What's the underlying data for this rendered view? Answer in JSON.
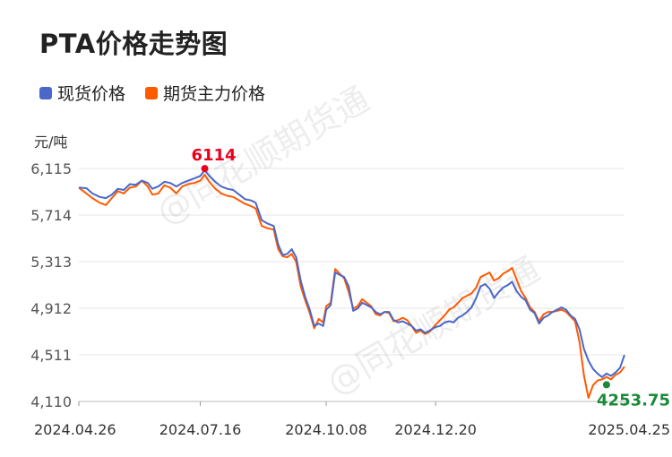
{
  "title": "PTA价格走势图",
  "chart_data": {
    "type": "line",
    "title": "PTA价格走势图",
    "unit": "元/吨",
    "ylim": [
      4110,
      6115
    ],
    "y_ticks": [
      "6,115",
      "5,714",
      "5,313",
      "4,912",
      "4,511",
      "4,110"
    ],
    "y_tick_values": [
      6115,
      5714,
      5313,
      4912,
      4511,
      4110
    ],
    "x_ticks": [
      "2024.04.26",
      "2024.07.16",
      "2024.10.08",
      "2024.12.20",
      "2025.04.25"
    ],
    "x_range": [
      "2024.04.26",
      "2025.04.25"
    ],
    "legend_position": "top-left",
    "grid": true,
    "series": [
      {
        "name": "现货价格",
        "color": "#4a67c9",
        "points": [
          [
            "2024-04-26",
            5950
          ],
          [
            "2024-05-01",
            5945
          ],
          [
            "2024-05-05",
            5900
          ],
          [
            "2024-05-10",
            5870
          ],
          [
            "2024-05-14",
            5860
          ],
          [
            "2024-05-18",
            5890
          ],
          [
            "2024-05-22",
            5940
          ],
          [
            "2024-05-26",
            5930
          ],
          [
            "2024-05-30",
            5980
          ],
          [
            "2024-06-03",
            5975
          ],
          [
            "2024-06-07",
            6010
          ],
          [
            "2024-06-11",
            5990
          ],
          [
            "2024-06-14",
            5940
          ],
          [
            "2024-06-18",
            5960
          ],
          [
            "2024-06-22",
            6000
          ],
          [
            "2024-06-26",
            5990
          ],
          [
            "2024-06-30",
            5960
          ],
          [
            "2024-07-04",
            5990
          ],
          [
            "2024-07-08",
            6010
          ],
          [
            "2024-07-12",
            6030
          ],
          [
            "2024-07-16",
            6050
          ],
          [
            "2024-07-19",
            6100
          ],
          [
            "2024-07-22",
            6050
          ],
          [
            "2024-07-26",
            6000
          ],
          [
            "2024-07-30",
            5960
          ],
          [
            "2024-08-03",
            5940
          ],
          [
            "2024-08-07",
            5930
          ],
          [
            "2024-08-11",
            5890
          ],
          [
            "2024-08-15",
            5850
          ],
          [
            "2024-08-19",
            5840
          ],
          [
            "2024-08-22",
            5820
          ],
          [
            "2024-08-26",
            5670
          ],
          [
            "2024-08-30",
            5640
          ],
          [
            "2024-09-03",
            5620
          ],
          [
            "2024-09-06",
            5460
          ],
          [
            "2024-09-09",
            5370
          ],
          [
            "2024-09-12",
            5380
          ],
          [
            "2024-09-15",
            5420
          ],
          [
            "2024-09-18",
            5350
          ],
          [
            "2024-09-21",
            5150
          ],
          [
            "2024-09-24",
            5010
          ],
          [
            "2024-09-27",
            4900
          ],
          [
            "2024-09-30",
            4760
          ],
          [
            "2024-10-03",
            4780
          ],
          [
            "2024-10-06",
            4760
          ],
          [
            "2024-10-08",
            4900
          ],
          [
            "2024-10-11",
            4940
          ],
          [
            "2024-10-14",
            5220
          ],
          [
            "2024-10-17",
            5200
          ],
          [
            "2024-10-20",
            5180
          ],
          [
            "2024-10-23",
            5100
          ],
          [
            "2024-10-26",
            4890
          ],
          [
            "2024-10-29",
            4910
          ],
          [
            "2024-11-01",
            4960
          ],
          [
            "2024-11-04",
            4940
          ],
          [
            "2024-11-07",
            4920
          ],
          [
            "2024-11-10",
            4880
          ],
          [
            "2024-11-13",
            4860
          ],
          [
            "2024-11-16",
            4880
          ],
          [
            "2024-11-19",
            4880
          ],
          [
            "2024-11-22",
            4810
          ],
          [
            "2024-11-25",
            4790
          ],
          [
            "2024-11-28",
            4800
          ],
          [
            "2024-12-01",
            4780
          ],
          [
            "2024-12-04",
            4760
          ],
          [
            "2024-12-07",
            4720
          ],
          [
            "2024-12-10",
            4730
          ],
          [
            "2024-12-13",
            4700
          ],
          [
            "2024-12-16",
            4720
          ],
          [
            "2024-12-20",
            4750
          ],
          [
            "2024-12-23",
            4760
          ],
          [
            "2024-12-26",
            4790
          ],
          [
            "2024-12-29",
            4800
          ],
          [
            "2025-01-01",
            4790
          ],
          [
            "2025-01-04",
            4830
          ],
          [
            "2025-01-07",
            4850
          ],
          [
            "2025-01-10",
            4880
          ],
          [
            "2025-01-13",
            4920
          ],
          [
            "2025-01-16",
            5000
          ],
          [
            "2025-01-19",
            5100
          ],
          [
            "2025-01-22",
            5120
          ],
          [
            "2025-01-25",
            5080
          ],
          [
            "2025-01-28",
            5000
          ],
          [
            "2025-01-31",
            5050
          ],
          [
            "2025-02-03",
            5090
          ],
          [
            "2025-02-06",
            5110
          ],
          [
            "2025-02-09",
            5140
          ],
          [
            "2025-02-12",
            5060
          ],
          [
            "2025-02-15",
            5010
          ],
          [
            "2025-02-18",
            4980
          ],
          [
            "2025-02-21",
            4900
          ],
          [
            "2025-02-24",
            4870
          ],
          [
            "2025-02-27",
            4780
          ],
          [
            "2025-03-02",
            4830
          ],
          [
            "2025-03-05",
            4850
          ],
          [
            "2025-03-08",
            4880
          ],
          [
            "2025-03-11",
            4900
          ],
          [
            "2025-03-14",
            4920
          ],
          [
            "2025-03-17",
            4900
          ],
          [
            "2025-03-20",
            4850
          ],
          [
            "2025-03-23",
            4820
          ],
          [
            "2025-03-26",
            4730
          ],
          [
            "2025-03-29",
            4560
          ],
          [
            "2025-04-01",
            4460
          ],
          [
            "2025-04-04",
            4390
          ],
          [
            "2025-04-07",
            4350
          ],
          [
            "2025-04-10",
            4320
          ],
          [
            "2025-04-13",
            4350
          ],
          [
            "2025-04-16",
            4330
          ],
          [
            "2025-04-19",
            4360
          ],
          [
            "2025-04-22",
            4400
          ],
          [
            "2025-04-25",
            4510
          ]
        ]
      },
      {
        "name": "期货主力价格",
        "color": "#ff5a00",
        "points": [
          [
            "2024-04-26",
            5950
          ],
          [
            "2024-05-01",
            5900
          ],
          [
            "2024-05-05",
            5860
          ],
          [
            "2024-05-10",
            5820
          ],
          [
            "2024-05-14",
            5800
          ],
          [
            "2024-05-18",
            5860
          ],
          [
            "2024-05-22",
            5920
          ],
          [
            "2024-05-26",
            5900
          ],
          [
            "2024-05-30",
            5950
          ],
          [
            "2024-06-03",
            5960
          ],
          [
            "2024-06-07",
            6010
          ],
          [
            "2024-06-11",
            5960
          ],
          [
            "2024-06-14",
            5890
          ],
          [
            "2024-06-18",
            5900
          ],
          [
            "2024-06-22",
            5970
          ],
          [
            "2024-06-26",
            5950
          ],
          [
            "2024-06-30",
            5900
          ],
          [
            "2024-07-04",
            5960
          ],
          [
            "2024-07-08",
            5980
          ],
          [
            "2024-07-12",
            5990
          ],
          [
            "2024-07-16",
            6010
          ],
          [
            "2024-07-19",
            6060
          ],
          [
            "2024-07-22",
            6000
          ],
          [
            "2024-07-26",
            5940
          ],
          [
            "2024-07-30",
            5900
          ],
          [
            "2024-08-03",
            5880
          ],
          [
            "2024-08-07",
            5870
          ],
          [
            "2024-08-11",
            5840
          ],
          [
            "2024-08-15",
            5810
          ],
          [
            "2024-08-19",
            5790
          ],
          [
            "2024-08-22",
            5770
          ],
          [
            "2024-08-26",
            5620
          ],
          [
            "2024-08-30",
            5600
          ],
          [
            "2024-09-03",
            5590
          ],
          [
            "2024-09-06",
            5420
          ],
          [
            "2024-09-09",
            5360
          ],
          [
            "2024-09-12",
            5350
          ],
          [
            "2024-09-15",
            5380
          ],
          [
            "2024-09-18",
            5310
          ],
          [
            "2024-09-21",
            5100
          ],
          [
            "2024-09-24",
            4980
          ],
          [
            "2024-09-27",
            4870
          ],
          [
            "2024-09-30",
            4740
          ],
          [
            "2024-10-03",
            4820
          ],
          [
            "2024-10-06",
            4790
          ],
          [
            "2024-10-08",
            4930
          ],
          [
            "2024-10-11",
            4960
          ],
          [
            "2024-10-14",
            5250
          ],
          [
            "2024-10-17",
            5210
          ],
          [
            "2024-10-20",
            5170
          ],
          [
            "2024-10-23",
            5050
          ],
          [
            "2024-10-26",
            4910
          ],
          [
            "2024-10-29",
            4930
          ],
          [
            "2024-11-01",
            4990
          ],
          [
            "2024-11-04",
            4960
          ],
          [
            "2024-11-07",
            4930
          ],
          [
            "2024-11-10",
            4860
          ],
          [
            "2024-11-13",
            4850
          ],
          [
            "2024-11-16",
            4880
          ],
          [
            "2024-11-19",
            4870
          ],
          [
            "2024-11-22",
            4800
          ],
          [
            "2024-11-25",
            4810
          ],
          [
            "2024-11-28",
            4830
          ],
          [
            "2024-12-01",
            4810
          ],
          [
            "2024-12-04",
            4760
          ],
          [
            "2024-12-07",
            4700
          ],
          [
            "2024-12-10",
            4720
          ],
          [
            "2024-12-13",
            4690
          ],
          [
            "2024-12-16",
            4710
          ],
          [
            "2024-12-20",
            4770
          ],
          [
            "2024-12-23",
            4810
          ],
          [
            "2024-12-26",
            4850
          ],
          [
            "2024-12-29",
            4900
          ],
          [
            "2025-01-01",
            4920
          ],
          [
            "2025-01-04",
            4960
          ],
          [
            "2025-01-07",
            5000
          ],
          [
            "2025-01-10",
            5020
          ],
          [
            "2025-01-13",
            5040
          ],
          [
            "2025-01-16",
            5090
          ],
          [
            "2025-01-19",
            5180
          ],
          [
            "2025-01-22",
            5200
          ],
          [
            "2025-01-25",
            5220
          ],
          [
            "2025-01-28",
            5150
          ],
          [
            "2025-01-31",
            5170
          ],
          [
            "2025-02-03",
            5210
          ],
          [
            "2025-02-06",
            5230
          ],
          [
            "2025-02-09",
            5260
          ],
          [
            "2025-02-12",
            5160
          ],
          [
            "2025-02-15",
            5060
          ],
          [
            "2025-02-18",
            5000
          ],
          [
            "2025-02-21",
            4920
          ],
          [
            "2025-02-24",
            4880
          ],
          [
            "2025-02-27",
            4800
          ],
          [
            "2025-03-02",
            4860
          ],
          [
            "2025-03-05",
            4880
          ],
          [
            "2025-03-08",
            4880
          ],
          [
            "2025-03-11",
            4890
          ],
          [
            "2025-03-14",
            4900
          ],
          [
            "2025-03-17",
            4880
          ],
          [
            "2025-03-20",
            4840
          ],
          [
            "2025-03-23",
            4800
          ],
          [
            "2025-03-26",
            4620
          ],
          [
            "2025-03-29",
            4330
          ],
          [
            "2025-04-01",
            4140
          ],
          [
            "2025-04-04",
            4250
          ],
          [
            "2025-04-07",
            4290
          ],
          [
            "2025-04-10",
            4300
          ],
          [
            "2025-04-13",
            4320
          ],
          [
            "2025-04-16",
            4300
          ],
          [
            "2025-04-19",
            4340
          ],
          [
            "2025-04-22",
            4360
          ],
          [
            "2025-04-25",
            4410
          ]
        ]
      }
    ],
    "annotations": [
      {
        "label": "6114",
        "date": "2024-07-19",
        "value": 6114,
        "color": "#e8001c"
      },
      {
        "label": "4253.75",
        "date": "2025-04-13",
        "value": 4253.75,
        "color": "#1a8a3a"
      }
    ]
  },
  "watermark": "@同花顺期货通"
}
